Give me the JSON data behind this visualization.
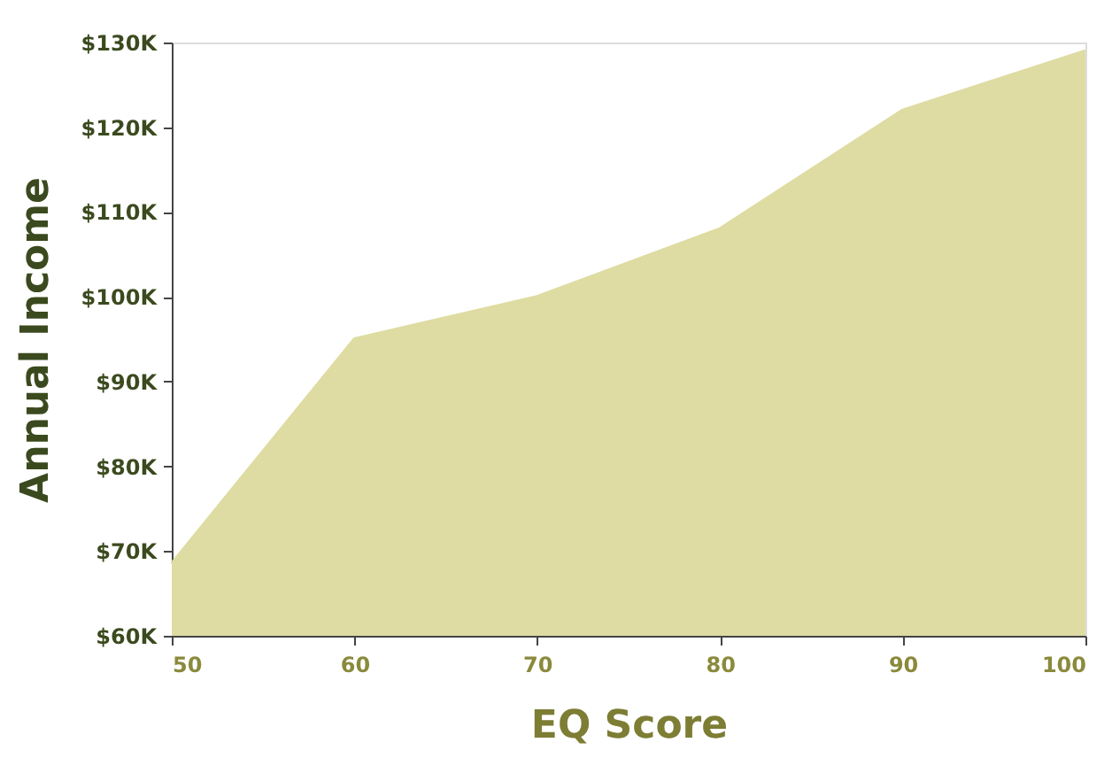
{
  "chart_data": {
    "type": "area",
    "xlabel": "EQ Score",
    "ylabel": "Annual Income",
    "x": [
      50,
      60,
      70,
      80,
      90,
      100
    ],
    "series": [
      {
        "color": "#dedca2",
        "values": [
          68.5,
          95,
          100,
          108,
          122,
          129
        ]
      }
    ],
    "xlim": [
      50,
      100
    ],
    "xticks": [
      50,
      60,
      70,
      80,
      90,
      100
    ],
    "ylim": [
      60,
      130
    ],
    "yticks": [
      {
        "value": 60,
        "label": "$60K"
      },
      {
        "value": 70,
        "label": "$70K"
      },
      {
        "value": 80,
        "label": "$80K"
      },
      {
        "value": 90,
        "label": "$90K"
      },
      {
        "value": 100,
        "label": "$100K"
      },
      {
        "value": 110,
        "label": "$110K"
      },
      {
        "value": 120,
        "label": "$120K"
      },
      {
        "value": 130,
        "label": "$130K"
      }
    ],
    "grid": false,
    "legend": false
  }
}
